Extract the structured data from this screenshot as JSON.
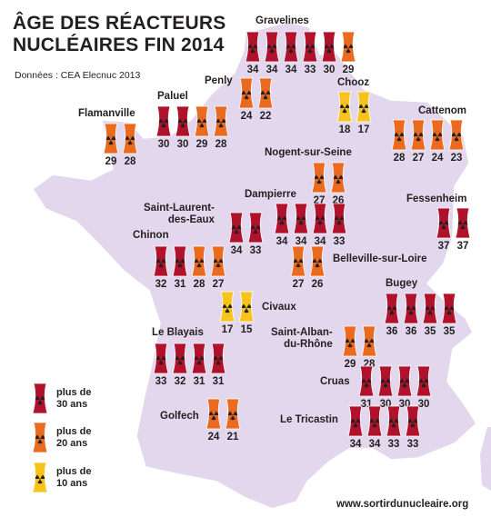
{
  "title_line1": "ÂGE DES RÉACTEURS",
  "title_line2": "NUCLÉAIRES FIN 2014",
  "source": "Données : CEA Elecnuc 2013",
  "website": "www.sortirdunucleaire.org",
  "colors": {
    "map_fill": "#e2d7ec",
    "map_stroke": "#ffffff",
    "age_30_plus": "#b0112b",
    "age_20_plus": "#ea6a1f",
    "age_10_plus": "#f6c41c"
  },
  "legend": [
    {
      "label_line1": "plus de",
      "label_line2": "30 ans",
      "category": "age_30_plus"
    },
    {
      "label_line1": "plus de",
      "label_line2": "20 ans",
      "category": "age_20_plus"
    },
    {
      "label_line1": "plus de",
      "label_line2": "10 ans",
      "category": "age_10_plus"
    }
  ],
  "sites": [
    {
      "name": "Gravelines",
      "ages": [
        34,
        34,
        34,
        33,
        30,
        29
      ]
    },
    {
      "name": "Penly",
      "ages": [
        24,
        22
      ]
    },
    {
      "name": "Chooz",
      "ages": [
        18,
        17
      ]
    },
    {
      "name": "Paluel",
      "ages": [
        30,
        30,
        29,
        28
      ]
    },
    {
      "name": "Flamanville",
      "ages": [
        29,
        28
      ]
    },
    {
      "name": "Cattenom",
      "ages": [
        28,
        27,
        24,
        23
      ]
    },
    {
      "name": "Nogent-sur-Seine",
      "ages": [
        27,
        26
      ]
    },
    {
      "name": "Dampierre",
      "ages": [
        34,
        34,
        34,
        33
      ]
    },
    {
      "name": "Saint-Laurent-des-Eaux",
      "name_line1": "Saint-Laurent-",
      "name_line2": "des-Eaux",
      "ages": [
        34,
        33
      ]
    },
    {
      "name": "Fessenheim",
      "ages": [
        37,
        37
      ]
    },
    {
      "name": "Chinon",
      "ages": [
        32,
        31,
        28,
        27
      ]
    },
    {
      "name": "Belleville-sur-Loire",
      "ages": [
        27,
        26
      ]
    },
    {
      "name": "Civaux",
      "ages": [
        17,
        15
      ]
    },
    {
      "name": "Bugey",
      "ages": [
        36,
        36,
        35,
        35
      ]
    },
    {
      "name": "Saint-Alban-du-Rhône",
      "name_line1": "Saint-Alban-",
      "name_line2": "du-Rhône",
      "ages": [
        29,
        28
      ]
    },
    {
      "name": "Le Blayais",
      "ages": [
        33,
        32,
        31,
        31
      ]
    },
    {
      "name": "Cruas",
      "ages": [
        31,
        30,
        30,
        30
      ]
    },
    {
      "name": "Golfech",
      "ages": [
        24,
        21
      ]
    },
    {
      "name": "Le Tricastin",
      "ages": [
        34,
        34,
        33,
        33
      ]
    }
  ]
}
